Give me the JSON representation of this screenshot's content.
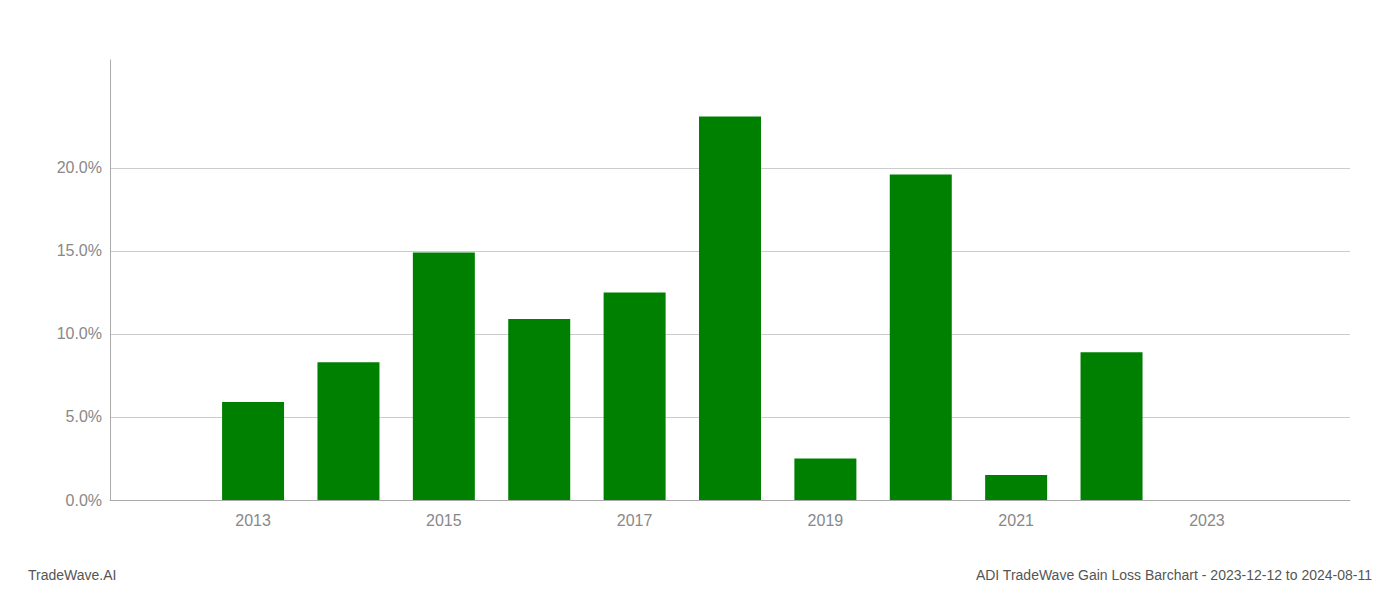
{
  "chart_data": {
    "type": "bar",
    "x": [
      2013,
      2014,
      2015,
      2016,
      2017,
      2018,
      2019,
      2020,
      2021,
      2022,
      2023
    ],
    "values": [
      0.059,
      0.083,
      0.149,
      0.109,
      0.125,
      0.231,
      0.025,
      0.196,
      0.015,
      0.089,
      0.0
    ],
    "color": "#008000",
    "xlim": [
      2011.5,
      2024.5
    ],
    "xticks": [
      2013,
      2015,
      2017,
      2019,
      2021,
      2023
    ],
    "ylim": [
      0,
      0.265
    ],
    "yticks": [
      {
        "value": 0.0,
        "label": "0.0%"
      },
      {
        "value": 0.05,
        "label": "5.0%"
      },
      {
        "value": 0.1,
        "label": "10.0%"
      },
      {
        "value": 0.15,
        "label": "15.0%"
      },
      {
        "value": 0.2,
        "label": "20.0%"
      }
    ],
    "grid": true,
    "annotations": [
      "TradeWave.AI",
      "ADI TradeWave Gain Loss Barchart - 2023-12-12 to 2024-08-11"
    ]
  }
}
